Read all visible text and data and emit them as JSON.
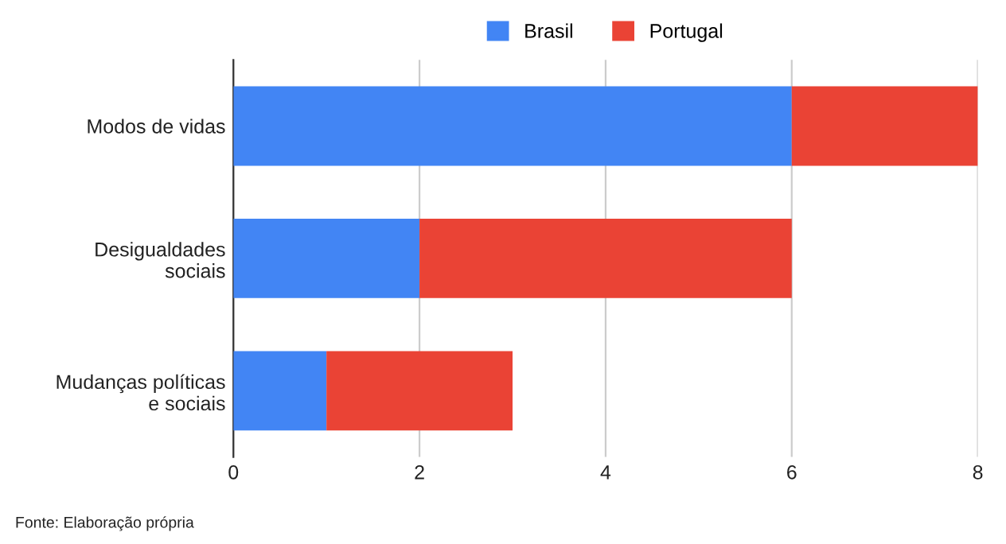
{
  "chart_data": {
    "type": "bar",
    "orientation": "horizontal",
    "stacked": true,
    "categories": [
      "Modos de vidas",
      "Desigualdades\nsociais",
      "Mudanças políticas\ne sociais"
    ],
    "series": [
      {
        "name": "Brasil",
        "color": "#4285f4",
        "values": [
          6,
          2,
          1
        ]
      },
      {
        "name": "Portugal",
        "color": "#ea4335",
        "values": [
          2,
          4,
          2
        ]
      }
    ],
    "xlim": [
      0,
      8
    ],
    "xticks": [
      0,
      2,
      4,
      6,
      8
    ],
    "grid": "x",
    "legend": "top",
    "annotations": [
      "Fonte: Elaboração própria"
    ]
  }
}
